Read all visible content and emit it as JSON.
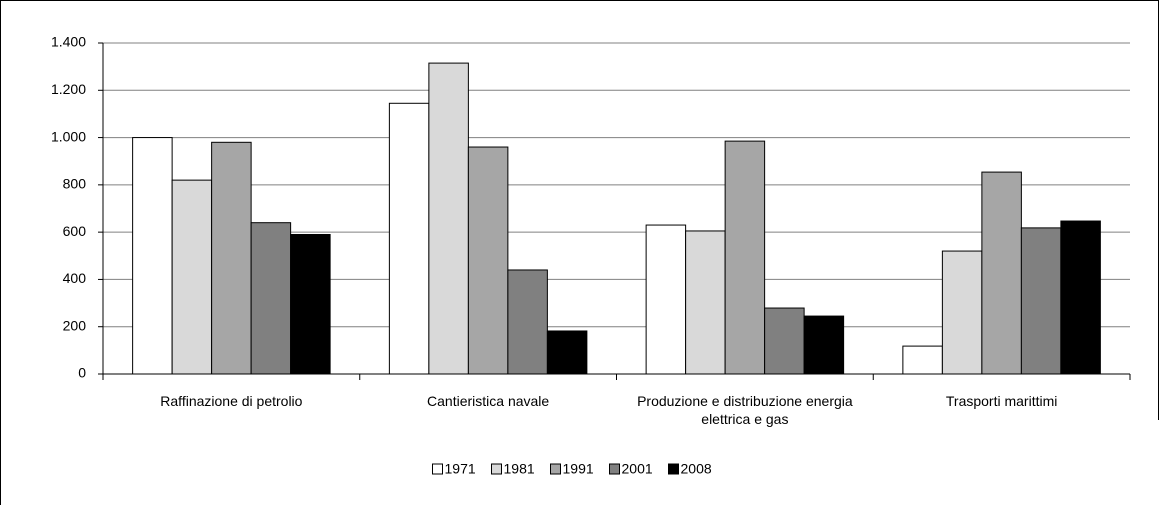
{
  "chart_data": {
    "type": "bar",
    "categories": [
      "Raffinazione di petrolio",
      "Cantieristica navale",
      "Produzione e distribuzione energia elettrica e gas",
      "Trasporti marittimi"
    ],
    "series": [
      {
        "name": "1971",
        "color": "#ffffff",
        "values": [
          1000,
          1145,
          630,
          118
        ]
      },
      {
        "name": "1981",
        "color": "#d9d9d9",
        "values": [
          820,
          1315,
          605,
          520
        ]
      },
      {
        "name": "1991",
        "color": "#a6a6a6",
        "values": [
          980,
          960,
          985,
          854
        ]
      },
      {
        "name": "2001",
        "color": "#808080",
        "values": [
          640,
          440,
          279,
          618
        ]
      },
      {
        "name": "2008",
        "color": "#000000",
        "values": [
          590,
          182,
          245,
          647
        ]
      }
    ],
    "ylim": [
      0,
      1400
    ],
    "yticks": [
      0,
      200,
      400,
      600,
      800,
      {
        "value": 1000,
        "label": "1.000"
      },
      {
        "value": 1200,
        "label": "1.200"
      },
      {
        "value": 1400,
        "label": "1.400"
      }
    ],
    "grid": true,
    "legend": "bottom"
  }
}
